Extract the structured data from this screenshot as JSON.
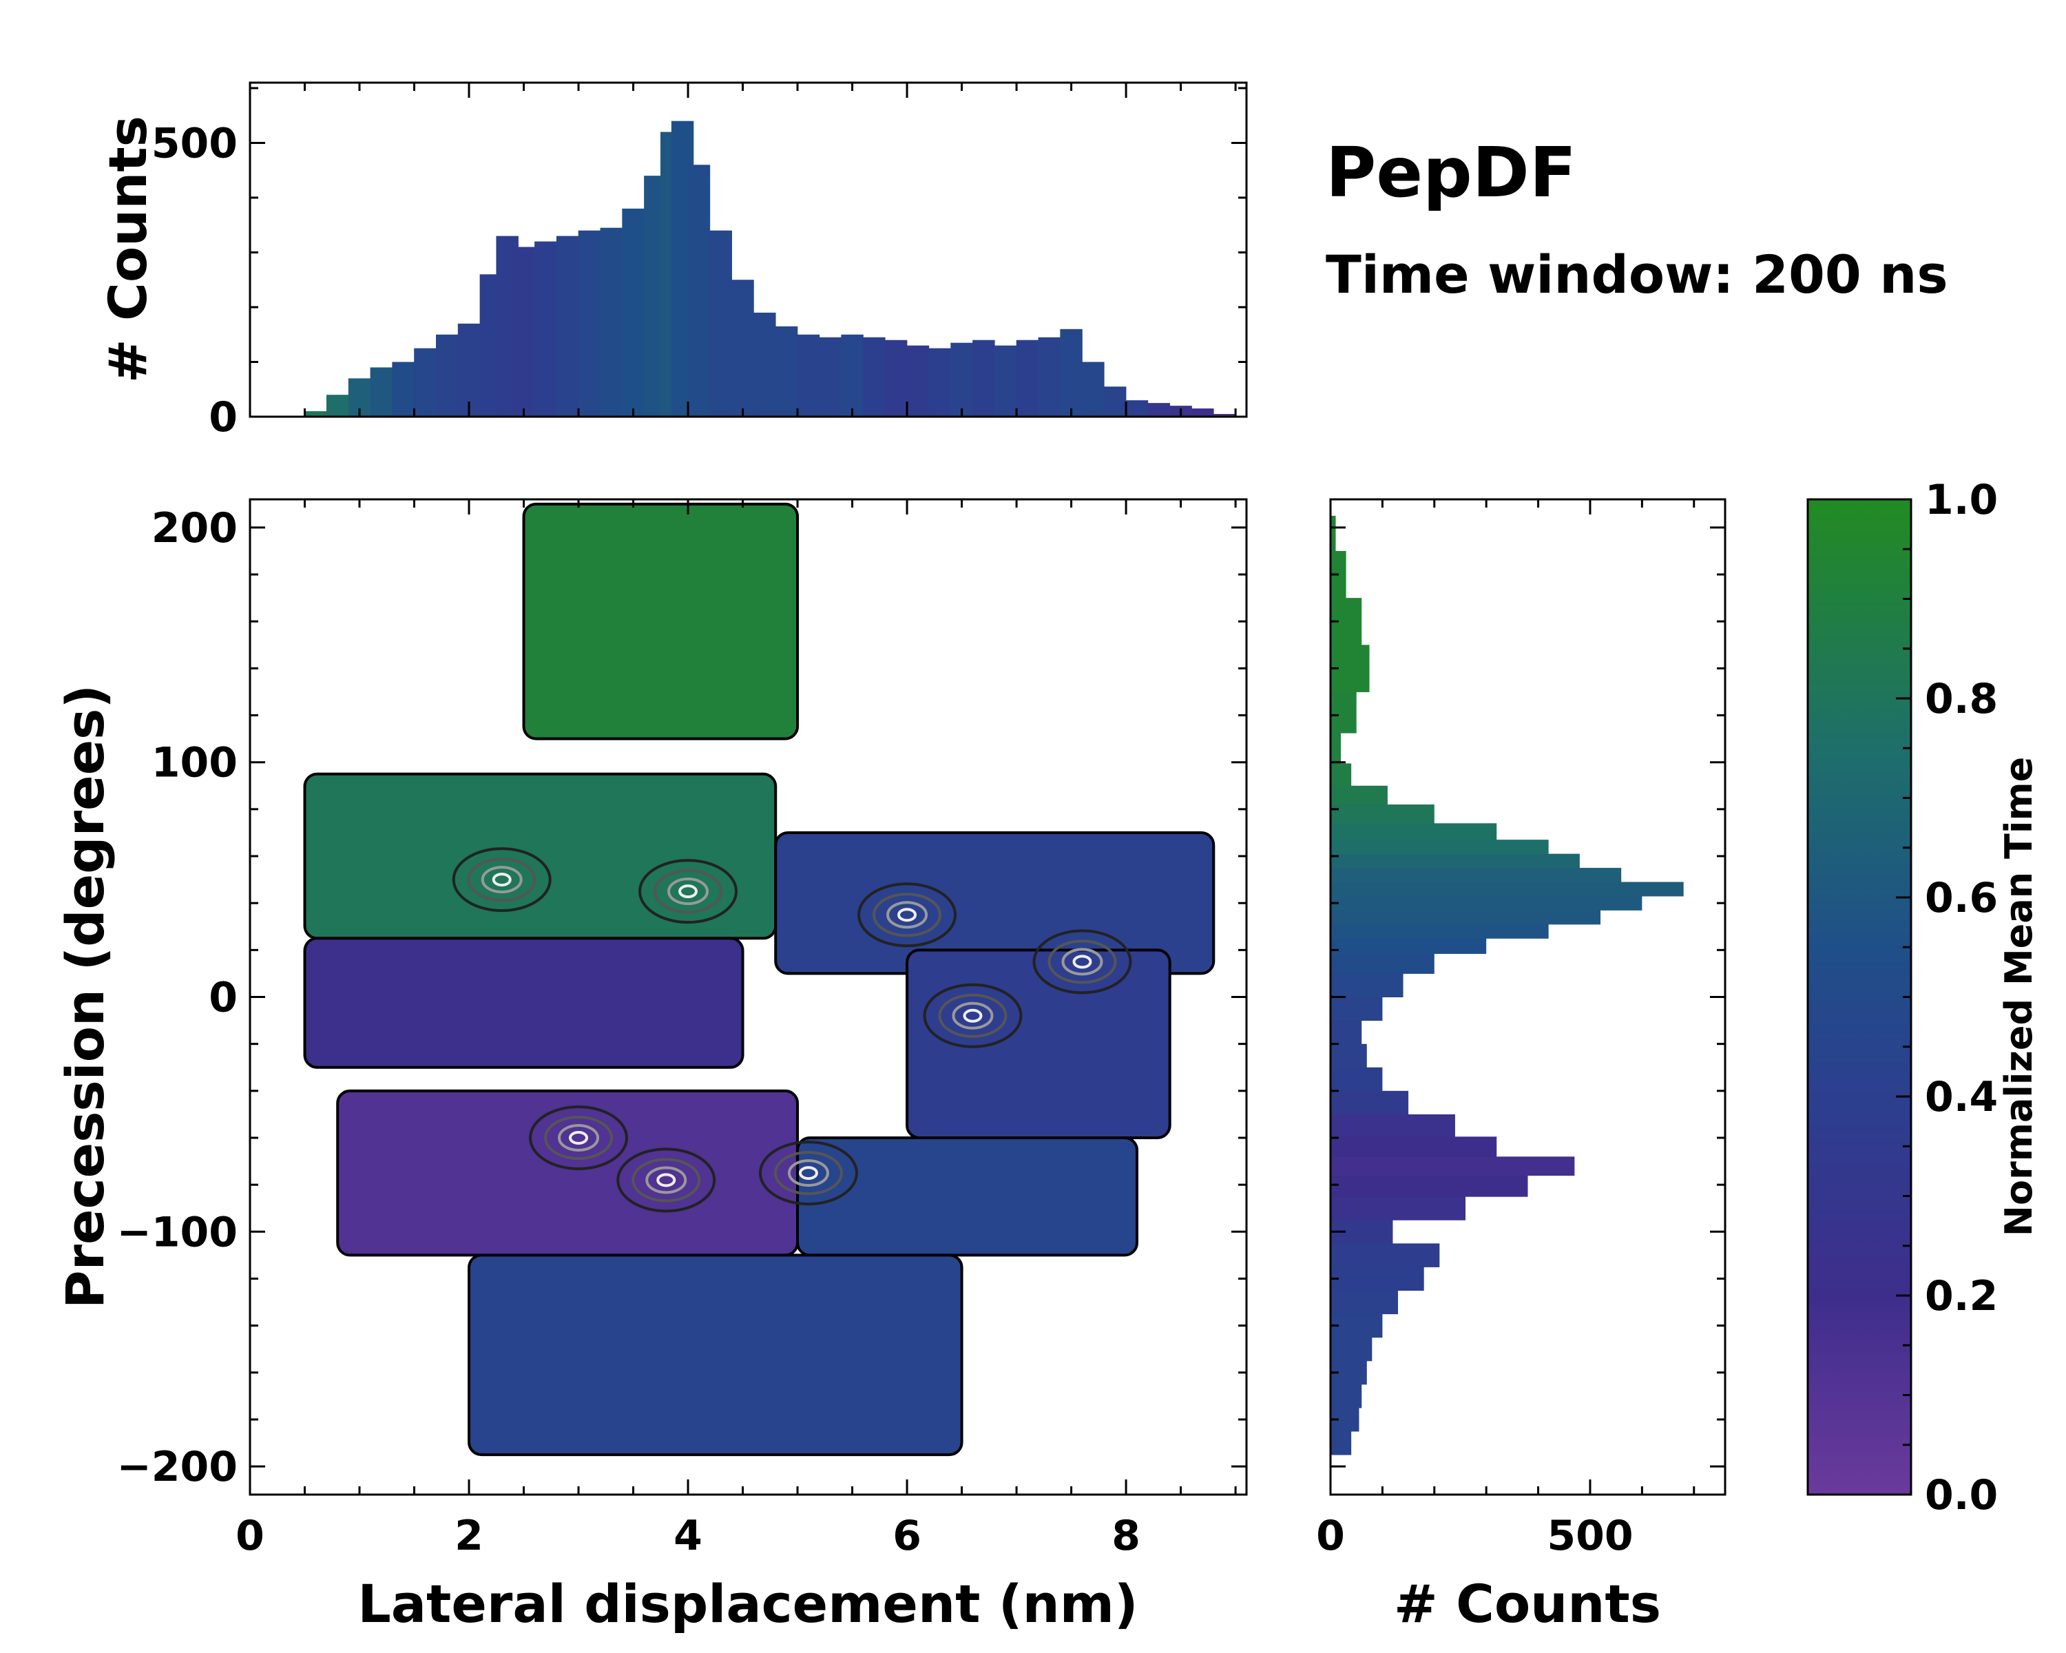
{
  "chart_data": [
    {
      "type": "heatmap",
      "panel": "main-2d-map",
      "xlabel": "Lateral displacement (nm)",
      "ylabel": "Precession (degrees)",
      "xlim": [
        0,
        9.1
      ],
      "ylim": [
        -212,
        212
      ],
      "xticks": [
        0,
        2,
        4,
        6,
        8
      ],
      "xticklabels": [
        "0",
        "2",
        "4",
        "6",
        "8"
      ],
      "yticks": [
        -200,
        -100,
        0,
        100,
        200
      ],
      "yticklabels": [
        "−200",
        "−100",
        "0",
        "100",
        "200"
      ],
      "color_meaning": "Normalized Mean Time",
      "regions": [
        {
          "name": "top-lobe",
          "x": [
            2.5,
            5.0
          ],
          "y": [
            110,
            210
          ],
          "mean_time": 0.93
        },
        {
          "name": "upper-band-left",
          "x": [
            0.5,
            4.8
          ],
          "y": [
            25,
            95
          ],
          "mean_time": 0.85
        },
        {
          "name": "upper-band-right",
          "x": [
            4.8,
            8.8
          ],
          "y": [
            10,
            70
          ],
          "mean_time": 0.42
        },
        {
          "name": "middle-band",
          "x": [
            0.5,
            4.5
          ],
          "y": [
            -30,
            25
          ],
          "mean_time": 0.22
        },
        {
          "name": "right-band",
          "x": [
            6.0,
            8.4
          ],
          "y": [
            -60,
            20
          ],
          "mean_time": 0.38
        },
        {
          "name": "lower-band-left",
          "x": [
            0.8,
            5.0
          ],
          "y": [
            -110,
            -40
          ],
          "mean_time": 0.12
        },
        {
          "name": "lower-band-right",
          "x": [
            5.0,
            8.1
          ],
          "y": [
            -110,
            -60
          ],
          "mean_time": 0.48
        },
        {
          "name": "bottom-lobe",
          "x": [
            2.0,
            6.5
          ],
          "y": [
            -195,
            -110
          ],
          "mean_time": 0.46
        }
      ],
      "density_peaks": [
        {
          "x": 2.3,
          "y": 50
        },
        {
          "x": 4.0,
          "y": 45
        },
        {
          "x": 6.0,
          "y": 35
        },
        {
          "x": 7.6,
          "y": 15
        },
        {
          "x": 6.6,
          "y": -8
        },
        {
          "x": 3.8,
          "y": -78
        },
        {
          "x": 5.1,
          "y": -75
        },
        {
          "x": 3.0,
          "y": -60
        }
      ]
    },
    {
      "type": "bar",
      "panel": "top-histogram",
      "xlabel": "",
      "ylabel": "# Counts",
      "xlim": [
        0,
        9.1
      ],
      "ylim": [
        0,
        610
      ],
      "yticks": [
        0,
        500
      ],
      "yticklabels": [
        "0",
        "500"
      ],
      "x": [
        0.6,
        0.8,
        1.0,
        1.2,
        1.4,
        1.6,
        1.8,
        2.0,
        2.2,
        2.35,
        2.5,
        2.7,
        2.9,
        3.1,
        3.3,
        3.5,
        3.7,
        3.85,
        3.95,
        4.1,
        4.3,
        4.5,
        4.7,
        4.9,
        5.1,
        5.3,
        5.5,
        5.7,
        5.9,
        6.1,
        6.3,
        6.5,
        6.7,
        6.9,
        7.1,
        7.3,
        7.5,
        7.7,
        7.9,
        8.1,
        8.3,
        8.5,
        8.7,
        8.9
      ],
      "values": [
        10,
        40,
        70,
        90,
        100,
        125,
        150,
        170,
        260,
        330,
        310,
        320,
        330,
        340,
        345,
        380,
        440,
        520,
        540,
        460,
        340,
        250,
        190,
        165,
        150,
        145,
        150,
        145,
        140,
        130,
        125,
        135,
        140,
        130,
        140,
        145,
        160,
        100,
        55,
        30,
        25,
        20,
        15,
        5
      ],
      "mean_time": [
        0.85,
        0.8,
        0.7,
        0.65,
        0.55,
        0.5,
        0.45,
        0.42,
        0.4,
        0.38,
        0.35,
        0.4,
        0.45,
        0.5,
        0.55,
        0.6,
        0.62,
        0.65,
        0.6,
        0.55,
        0.5,
        0.5,
        0.5,
        0.5,
        0.45,
        0.45,
        0.5,
        0.4,
        0.35,
        0.35,
        0.4,
        0.45,
        0.4,
        0.45,
        0.4,
        0.45,
        0.5,
        0.5,
        0.45,
        0.4,
        0.3,
        0.25,
        0.2,
        0.15
      ]
    },
    {
      "type": "bar",
      "orientation": "horizontal",
      "panel": "right-histogram",
      "xlabel": "# Counts",
      "ylabel": "",
      "xlim": [
        0,
        760
      ],
      "ylim": [
        -212,
        212
      ],
      "xticks": [
        0,
        500
      ],
      "xticklabels": [
        "0",
        "500"
      ],
      "y": [
        -190,
        -180,
        -170,
        -160,
        -150,
        -140,
        -130,
        -120,
        -110,
        -100,
        -90,
        -80,
        -72,
        -64,
        -55,
        -45,
        -35,
        -25,
        -15,
        -5,
        5,
        15,
        22,
        28,
        34,
        40,
        46,
        52,
        58,
        64,
        70,
        78,
        86,
        94,
        105,
        120,
        140,
        160,
        180,
        200
      ],
      "values": [
        40,
        55,
        60,
        70,
        80,
        100,
        130,
        180,
        210,
        120,
        260,
        380,
        470,
        320,
        240,
        150,
        100,
        70,
        60,
        100,
        140,
        200,
        300,
        420,
        520,
        600,
        680,
        560,
        480,
        420,
        320,
        200,
        110,
        40,
        20,
        50,
        75,
        60,
        30,
        10
      ],
      "mean_time": [
        0.45,
        0.45,
        0.45,
        0.45,
        0.45,
        0.45,
        0.42,
        0.4,
        0.38,
        0.33,
        0.25,
        0.2,
        0.18,
        0.2,
        0.25,
        0.35,
        0.4,
        0.42,
        0.42,
        0.45,
        0.5,
        0.55,
        0.6,
        0.62,
        0.65,
        0.67,
        0.68,
        0.7,
        0.75,
        0.8,
        0.82,
        0.85,
        0.88,
        0.9,
        0.92,
        0.93,
        0.95,
        0.95,
        0.95,
        0.95
      ]
    },
    {
      "type": "colorbar",
      "panel": "colorbar",
      "label": "Normalized Mean Time",
      "range": [
        0,
        1
      ],
      "ticks": [
        0,
        0.2,
        0.4,
        0.6,
        0.8,
        1.0
      ],
      "ticklabels": [
        "0.0",
        "0.2",
        "0.4",
        "0.6",
        "0.8",
        "1.0"
      ],
      "colormap": [
        "#6a3a9c",
        "#3e2e8c",
        "#2c3f8e",
        "#1f4f88",
        "#1e6f6a",
        "#228b22"
      ]
    }
  ],
  "annotations": {
    "title": "PepDF",
    "subtitle": "Time window: 200 ns"
  }
}
